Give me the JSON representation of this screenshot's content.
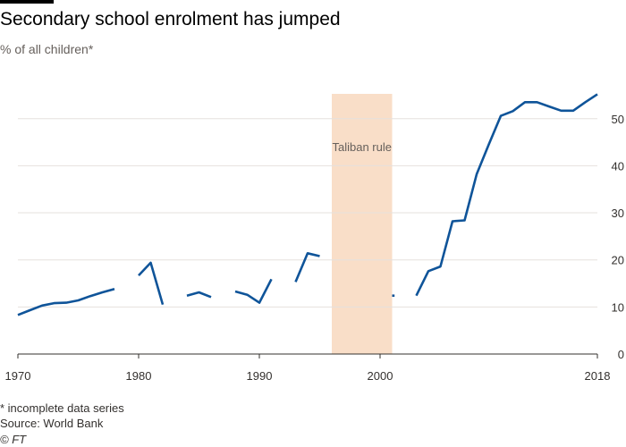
{
  "title": "Secondary school enrolment has jumped",
  "subtitle": "% of all children*",
  "footnote": "* incomplete data series",
  "source": "Source: World Bank",
  "copyright": "© FT",
  "colors": {
    "line": "#0f5499",
    "band": "#f9dec8",
    "grid": "#e6e1dd",
    "axis": "#33302e",
    "tick_text": "#33302e",
    "annotation_text": "#66605c"
  },
  "chart_data": {
    "type": "line",
    "title": "Secondary school enrolment has jumped",
    "ylabel": "% of all children*",
    "xlim": [
      1970,
      2018
    ],
    "ylim": [
      0,
      55
    ],
    "x_ticks": [
      1970,
      1980,
      1990,
      2000,
      2018
    ],
    "y_ticks": [
      0,
      10,
      20,
      30,
      40,
      50
    ],
    "y_axis_side": "right",
    "grid": "horizontal",
    "annotation": {
      "label": "Taliban rule",
      "x_start": 1996,
      "x_end": 2001
    },
    "segments": [
      {
        "x": [
          1970,
          1971,
          1972,
          1973,
          1974,
          1975,
          1976,
          1977,
          1978
        ],
        "y": [
          8.3,
          9.3,
          10.3,
          10.8,
          10.9,
          11.4,
          12.3,
          13.1,
          13.8
        ]
      },
      {
        "x": [
          1980,
          1981,
          1982
        ],
        "y": [
          16.7,
          19.4,
          10.5
        ]
      },
      {
        "x": [
          1984,
          1985,
          1986
        ],
        "y": [
          12.4,
          13.1,
          12.1
        ]
      },
      {
        "x": [
          1988,
          1989,
          1990,
          1991
        ],
        "y": [
          13.3,
          12.6,
          10.9,
          15.9
        ]
      },
      {
        "x": [
          1993,
          1994,
          1995
        ],
        "y": [
          15.3,
          21.4,
          20.8
        ]
      },
      {
        "x": [
          2001,
          2001.2
        ],
        "y": [
          12.4,
          12.4
        ]
      },
      {
        "x": [
          2003,
          2004,
          2005,
          2006,
          2007,
          2008,
          2009,
          2010,
          2011,
          2012,
          2013,
          2014,
          2015,
          2016,
          2017,
          2018
        ],
        "y": [
          12.4,
          17.6,
          18.6,
          28.2,
          28.4,
          38.2,
          44.5,
          50.6,
          51.6,
          53.5,
          53.5,
          52.6,
          51.7,
          51.7,
          53.5,
          55.2
        ]
      }
    ]
  }
}
